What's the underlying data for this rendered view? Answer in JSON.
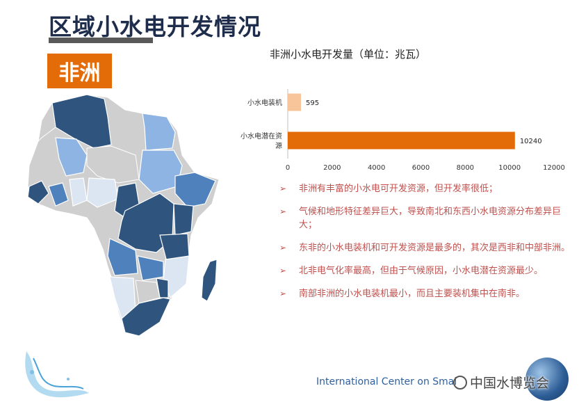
{
  "header": {
    "title": "区域小水电开发情况"
  },
  "region_badge": "非洲",
  "chart_data": {
    "type": "bar",
    "orientation": "horizontal",
    "title": "非洲小水电开发量（单位：兆瓦）",
    "categories": [
      "小水电装机",
      "小水电潜在资源"
    ],
    "category_lines": [
      [
        "小水电装机"
      ],
      [
        "小水电潜在资",
        "源"
      ]
    ],
    "values": [
      595,
      10240
    ],
    "data_labels": [
      "595",
      "10240"
    ],
    "colors": [
      "#f8c49a",
      "#e36c09"
    ],
    "xlim": [
      0,
      12000
    ],
    "xticks": [
      0,
      2000,
      4000,
      6000,
      8000,
      10000,
      12000
    ],
    "grid": false
  },
  "bullets": [
    "非洲有丰富的小水电可开发资源，但开发率很低；",
    "气候和地形特征差异巨大，导致南北和东西小水电资源分布差异巨大；",
    "东非的小水电装机和可开发资源是最多的，其次是西非和中部非洲。",
    "北非电气化率最高，但由于气候原因，小水电潜在资源最少。",
    "南部非洲的小水电装机最小，而且主要装机集中在南非。"
  ],
  "bullet_marker": "➢",
  "footer": {
    "text": "International Center on Smal",
    "watermark": "中国水博览会"
  }
}
